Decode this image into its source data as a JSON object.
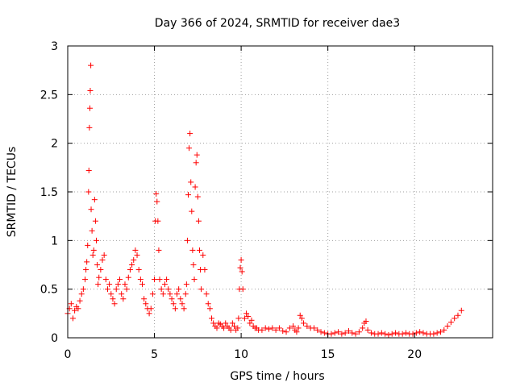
{
  "chart_data": {
    "type": "scatter",
    "title": "Day 366 of 2024, SRMTID for receiver dae3",
    "xlabel": "GPS time / hours",
    "ylabel": "SRMTID / TECUs",
    "xlim": [
      0,
      24.5
    ],
    "ylim": [
      0,
      3
    ],
    "xticks": [
      0,
      5,
      10,
      15,
      20
    ],
    "yticks": [
      0,
      0.5,
      1,
      1.5,
      2,
      2.5,
      3
    ],
    "xtick_labels": [
      "0",
      "5",
      "10",
      "15",
      "20"
    ],
    "ytick_labels": [
      "0",
      "0.5",
      "1",
      "1.5",
      "2",
      "2.5",
      "3"
    ],
    "grid": true,
    "marker": "+",
    "color": "#ff0000",
    "series": [
      {
        "name": "SRMTID",
        "x": [
          0.0,
          0.1,
          0.2,
          0.3,
          0.4,
          0.5,
          0.6,
          0.7,
          0.8,
          0.9,
          1.0,
          1.05,
          1.1,
          1.15,
          1.2,
          1.22,
          1.25,
          1.28,
          1.3,
          1.33,
          1.35,
          1.4,
          1.45,
          1.5,
          1.55,
          1.6,
          1.65,
          1.7,
          1.75,
          1.8,
          1.9,
          2.0,
          2.1,
          2.2,
          2.3,
          2.4,
          2.5,
          2.6,
          2.7,
          2.8,
          2.9,
          3.0,
          3.1,
          3.2,
          3.3,
          3.4,
          3.5,
          3.6,
          3.7,
          3.8,
          3.9,
          4.0,
          4.1,
          4.2,
          4.3,
          4.4,
          4.5,
          4.6,
          4.7,
          4.8,
          4.9,
          5.0,
          5.05,
          5.1,
          5.15,
          5.2,
          5.25,
          5.3,
          5.4,
          5.5,
          5.6,
          5.7,
          5.8,
          5.9,
          6.0,
          6.1,
          6.2,
          6.3,
          6.4,
          6.5,
          6.6,
          6.7,
          6.8,
          6.85,
          6.9,
          6.95,
          7.0,
          7.05,
          7.1,
          7.15,
          7.2,
          7.25,
          7.3,
          7.35,
          7.4,
          7.45,
          7.5,
          7.55,
          7.6,
          7.65,
          7.7,
          7.8,
          7.9,
          8.0,
          8.1,
          8.2,
          8.3,
          8.4,
          8.5,
          8.6,
          8.7,
          8.8,
          8.9,
          9.0,
          9.1,
          9.2,
          9.3,
          9.4,
          9.5,
          9.6,
          9.7,
          9.8,
          9.85,
          9.9,
          9.95,
          10.0,
          10.05,
          10.1,
          10.2,
          10.3,
          10.4,
          10.5,
          10.6,
          10.7,
          10.8,
          10.9,
          11.0,
          11.2,
          11.4,
          11.6,
          11.8,
          12.0,
          12.2,
          12.4,
          12.6,
          12.8,
          13.0,
          13.1,
          13.2,
          13.3,
          13.4,
          13.5,
          13.6,
          13.8,
          14.0,
          14.2,
          14.4,
          14.6,
          14.8,
          15.0,
          15.2,
          15.4,
          15.6,
          15.8,
          16.0,
          16.2,
          16.4,
          16.6,
          16.8,
          17.0,
          17.1,
          17.2,
          17.3,
          17.5,
          17.7,
          17.9,
          18.1,
          18.3,
          18.5,
          18.7,
          18.9,
          19.1,
          19.3,
          19.5,
          19.7,
          19.9,
          20.1,
          20.3,
          20.5,
          20.7,
          20.9,
          21.1,
          21.3,
          21.5,
          21.7,
          21.9,
          22.1,
          22.3,
          22.5,
          22.7
        ],
        "y": [
          0.25,
          0.3,
          0.35,
          0.2,
          0.28,
          0.32,
          0.3,
          0.38,
          0.45,
          0.5,
          0.6,
          0.7,
          0.78,
          0.95,
          1.5,
          1.72,
          2.16,
          2.36,
          2.54,
          2.8,
          1.32,
          1.1,
          0.85,
          0.9,
          1.42,
          1.2,
          1.0,
          0.75,
          0.55,
          0.62,
          0.7,
          0.8,
          0.85,
          0.6,
          0.5,
          0.55,
          0.45,
          0.4,
          0.35,
          0.5,
          0.55,
          0.6,
          0.45,
          0.4,
          0.55,
          0.5,
          0.62,
          0.7,
          0.75,
          0.8,
          0.9,
          0.85,
          0.7,
          0.6,
          0.55,
          0.4,
          0.35,
          0.3,
          0.25,
          0.3,
          0.45,
          0.6,
          1.2,
          1.48,
          1.4,
          1.2,
          0.9,
          0.6,
          0.5,
          0.45,
          0.55,
          0.6,
          0.5,
          0.45,
          0.4,
          0.35,
          0.3,
          0.45,
          0.5,
          0.4,
          0.35,
          0.3,
          0.45,
          0.55,
          1.0,
          1.47,
          1.95,
          2.1,
          1.6,
          1.3,
          0.9,
          0.75,
          0.6,
          1.55,
          1.8,
          1.88,
          1.45,
          1.2,
          0.9,
          0.7,
          0.5,
          0.85,
          0.7,
          0.45,
          0.35,
          0.3,
          0.2,
          0.15,
          0.12,
          0.1,
          0.15,
          0.14,
          0.12,
          0.1,
          0.15,
          0.12,
          0.1,
          0.08,
          0.15,
          0.12,
          0.08,
          0.1,
          0.2,
          0.5,
          0.72,
          0.8,
          0.68,
          0.5,
          0.2,
          0.25,
          0.22,
          0.15,
          0.18,
          0.12,
          0.1,
          0.1,
          0.08,
          0.08,
          0.1,
          0.09,
          0.1,
          0.08,
          0.1,
          0.07,
          0.06,
          0.1,
          0.12,
          0.08,
          0.06,
          0.1,
          0.23,
          0.2,
          0.15,
          0.12,
          0.1,
          0.1,
          0.08,
          0.06,
          0.05,
          0.04,
          0.04,
          0.05,
          0.06,
          0.04,
          0.05,
          0.07,
          0.05,
          0.04,
          0.06,
          0.1,
          0.15,
          0.17,
          0.08,
          0.05,
          0.04,
          0.04,
          0.05,
          0.04,
          0.03,
          0.04,
          0.05,
          0.04,
          0.04,
          0.05,
          0.04,
          0.04,
          0.05,
          0.06,
          0.05,
          0.04,
          0.04,
          0.04,
          0.05,
          0.06,
          0.08,
          0.12,
          0.16,
          0.2,
          0.23,
          0.28
        ]
      }
    ]
  }
}
